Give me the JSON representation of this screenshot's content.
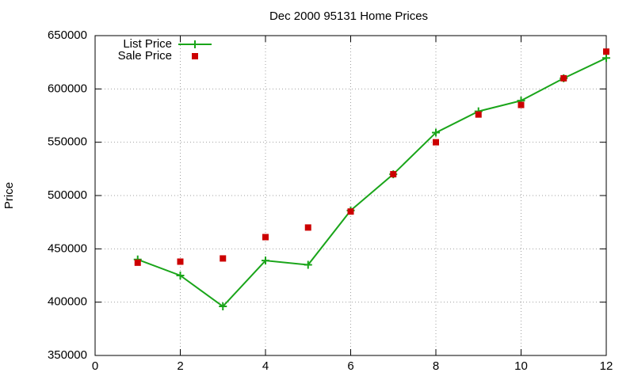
{
  "chart_data": {
    "type": "line",
    "title": "Dec 2000 95131 Home Prices",
    "y_label": "Price",
    "x": [
      1,
      2,
      3,
      4,
      5,
      6,
      7,
      8,
      9,
      10,
      11,
      12
    ],
    "series": [
      {
        "name": "List Price",
        "color": "#1aa51a",
        "style": "linespoints",
        "values": [
          440000,
          425000,
          396000,
          439000,
          435000,
          486000,
          520000,
          559000,
          579000,
          589000,
          610000,
          629000
        ]
      },
      {
        "name": "Sale Price",
        "color": "#cc0000",
        "style": "points",
        "values": [
          437000,
          438000,
          441000,
          461000,
          470000,
          485000,
          520000,
          550000,
          576000,
          585000,
          610000,
          635000
        ]
      }
    ],
    "xlim": [
      0,
      12
    ],
    "xticks": [
      0,
      2,
      4,
      6,
      8,
      10,
      12
    ],
    "ylim": [
      350000,
      650000
    ],
    "yticks": [
      350000,
      400000,
      450000,
      500000,
      550000,
      600000,
      650000
    ],
    "grid": true,
    "legend": "top-left"
  }
}
